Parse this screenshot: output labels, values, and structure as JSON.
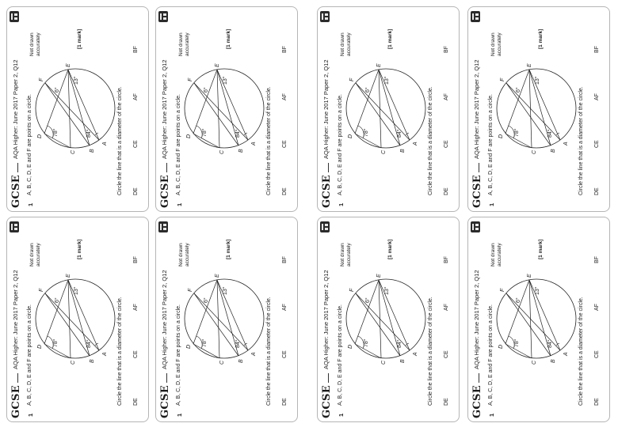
{
  "worksheet": {
    "brand": "GCSE",
    "source": "AQA Higher: June 2017 Paper 2, Q12",
    "question_number": "1",
    "stem": "A, B, C, D, E and F are points on a circle.",
    "not_drawn": "Not drawn accurately",
    "marks": "[1 mark]",
    "instruction": "Circle the line that is a diameter of the circle.",
    "options": [
      "DE",
      "CE",
      "AF",
      "BF"
    ],
    "diagram": {
      "points": [
        "A",
        "B",
        "C",
        "D",
        "E",
        "F"
      ],
      "angles": [
        "84°",
        "78°",
        "6°",
        "13°"
      ]
    }
  }
}
